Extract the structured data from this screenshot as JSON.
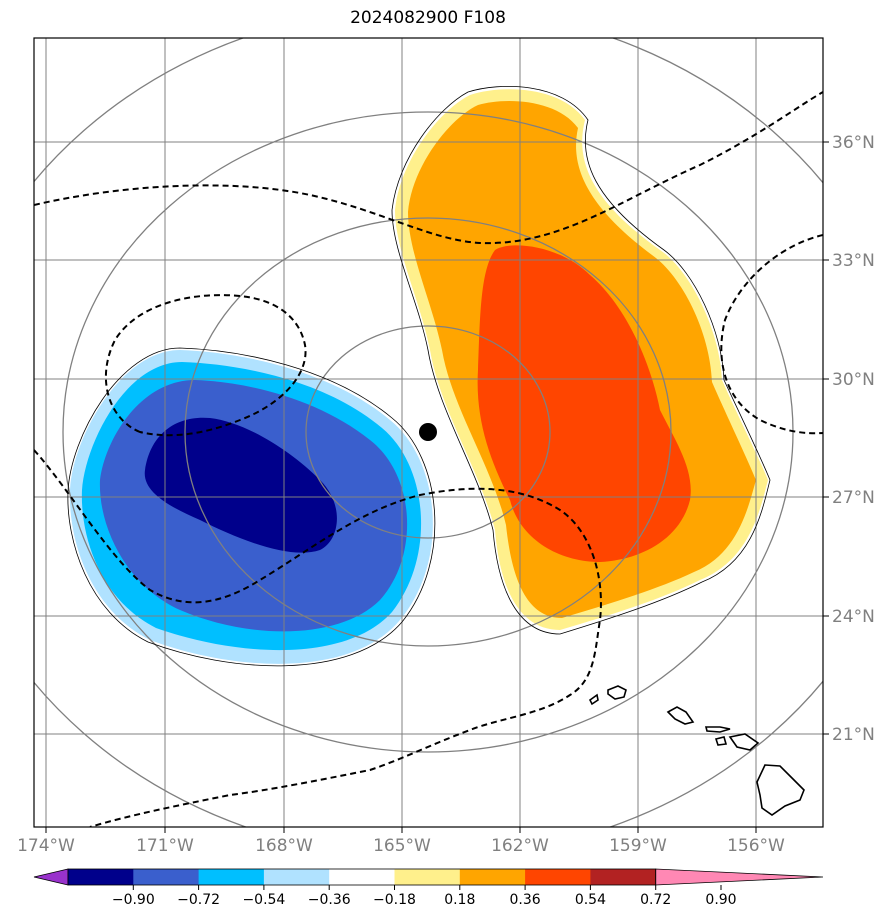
{
  "title": "2024082900 F108",
  "longitude_labels": [
    "174°W",
    "171°W",
    "168°W",
    "165°W",
    "162°W",
    "159°W",
    "156°W"
  ],
  "latitude_labels": [
    "36°N",
    "33°N",
    "30°N",
    "27°N",
    "24°N",
    "21°N"
  ],
  "colorbar": {
    "ticks": [
      "−0.90",
      "−0.72",
      "−0.54",
      "−0.36",
      "−0.18",
      "0.18",
      "0.36",
      "0.54",
      "0.72",
      "0.90"
    ],
    "colors": [
      "#9932cc",
      "#00008b",
      "#3a5fcd",
      "#00bfff",
      "#b0e2ff",
      "#ffffff",
      "#fff08c",
      "#ffa500",
      "#ff4500",
      "#b22222",
      "#ff88b4"
    ]
  },
  "colors": {
    "grid": "#808080",
    "positive_outer": "#fff08c",
    "positive_mid": "#ffa500",
    "positive_inner": "#ff4500",
    "negative_outer": "#b0e2ff",
    "negative_mid": "#00bfff",
    "negative_main": "#3a5fcd",
    "negative_inner": "#00008b"
  },
  "storm_center": {
    "lon": -164.3,
    "lat": 28.7
  }
}
